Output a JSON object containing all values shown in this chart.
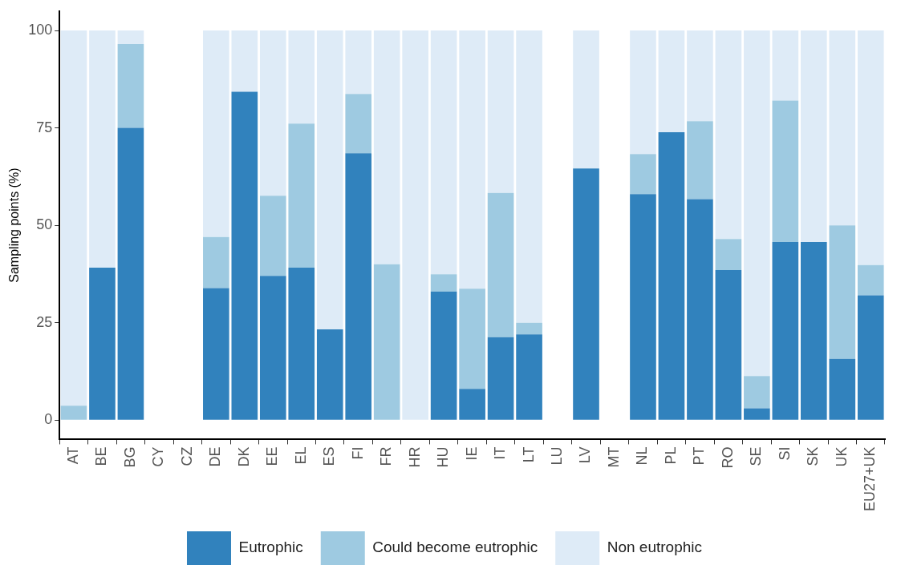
{
  "chart_data": {
    "type": "bar",
    "stacked": true,
    "ylabel": "Sampling points (%)",
    "legend": "bottom",
    "categories": [
      "AT",
      "BE",
      "BG",
      "CY",
      "CZ",
      "DE",
      "DK",
      "EE",
      "EL",
      "ES",
      "FI",
      "FR",
      "HR",
      "HU",
      "IE",
      "IT",
      "LT",
      "LU",
      "LV",
      "MT",
      "NL",
      "PL",
      "PT",
      "RO",
      "SE",
      "SI",
      "SK",
      "UK",
      "EU27+UK"
    ],
    "ylim": [
      -5,
      105
    ],
    "yticks": [
      0,
      25,
      50,
      75,
      100
    ],
    "series": [
      {
        "name": "Eutrophic",
        "color": "#3182bd",
        "values": [
          0,
          39.1,
          75,
          null,
          null,
          33.9,
          84.3,
          37,
          39.1,
          23.3,
          68.5,
          0,
          0,
          33,
          8,
          21.3,
          22,
          null,
          64.6,
          null,
          58,
          73.9,
          56.7,
          38.5,
          3,
          45.7,
          45.7,
          15.7,
          32
        ]
      },
      {
        "name": "Could become eutrophic",
        "color": "#9ecae1",
        "values": [
          3.7,
          0,
          21.5,
          null,
          null,
          13.1,
          0,
          20.6,
          37,
          0,
          15.2,
          40,
          0,
          4.4,
          25.7,
          37,
          3,
          null,
          0,
          null,
          10.3,
          0,
          20,
          8,
          8.3,
          36.3,
          0,
          34.3,
          7.8
        ]
      },
      {
        "name": "Non eutrophic",
        "color": "#deebf7",
        "values": [
          96.3,
          60.9,
          3.5,
          null,
          null,
          53,
          15.7,
          42.4,
          23.9,
          76.7,
          16.3,
          60,
          100,
          62.6,
          66.3,
          41.7,
          75,
          null,
          35.4,
          null,
          31.7,
          26.1,
          23.3,
          53.5,
          88.7,
          18,
          54.3,
          50,
          60.2
        ]
      }
    ]
  }
}
